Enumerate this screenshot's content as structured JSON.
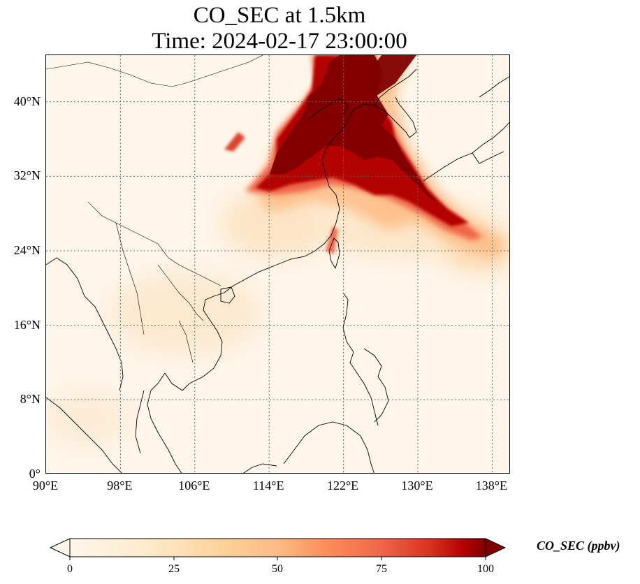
{
  "title": "CO_SEC at 1.5km",
  "time_label": "Time: 2024-02-17 23:00:00",
  "map": {
    "extent": {
      "lon_min": 90,
      "lon_max": 140,
      "lat_min": 0,
      "lat_max": 45
    },
    "lon_ticks": [
      90,
      98,
      106,
      114,
      122,
      130,
      138
    ],
    "lon_labels": [
      "90°E",
      "98°E",
      "106°E",
      "114°E",
      "122°E",
      "130°E",
      "138°E"
    ],
    "lat_ticks": [
      0,
      8,
      16,
      24,
      32,
      40
    ],
    "lat_labels": [
      "0°",
      "8°N",
      "16°N",
      "24°N",
      "32°N",
      "40°N"
    ],
    "gridlines": "dotted",
    "coastlines": true,
    "colormap": "OrRd",
    "colors": {
      "low": "#fff7ec",
      "mid_low": "#fdd49e",
      "mid": "#fc8d59",
      "high": "#d7301f",
      "max": "#7f0000"
    }
  },
  "colorbar": {
    "label": "CO_SEC (ppbv)",
    "ticks": [
      "0",
      "25",
      "50",
      "75",
      "100"
    ],
    "min": 0,
    "max": 100,
    "extend": "both"
  }
}
